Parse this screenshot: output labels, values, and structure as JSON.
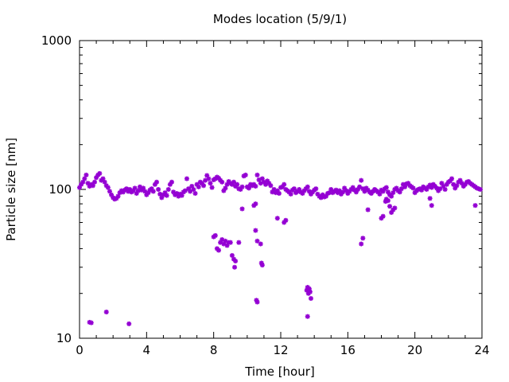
{
  "chart_data": {
    "type": "scatter",
    "title": "Modes location (5/9/1)",
    "xlabel": "Time [hour]",
    "ylabel": "Particle size [nm]",
    "xlim": [
      0,
      24
    ],
    "ylim": [
      10,
      1000
    ],
    "yscale": "log",
    "xticks": [
      0,
      4,
      8,
      12,
      16,
      20,
      24
    ],
    "yticks": [
      10,
      100,
      1000
    ],
    "grid": false,
    "marker_color": "#9400D3",
    "series": [
      {
        "points": [
          [
            0.0,
            103
          ],
          [
            0.1,
            108
          ],
          [
            0.2,
            112
          ],
          [
            0.3,
            118
          ],
          [
            0.4,
            125
          ],
          [
            0.5,
            110
          ],
          [
            0.6,
            105
          ],
          [
            0.7,
            108
          ],
          [
            0.8,
            106
          ],
          [
            0.9,
            112
          ],
          [
            1.0,
            120
          ],
          [
            1.1,
            125
          ],
          [
            1.2,
            128
          ],
          [
            1.3,
            115
          ],
          [
            1.4,
            118
          ],
          [
            1.5,
            112
          ],
          [
            1.6,
            106
          ],
          [
            1.7,
            103
          ],
          [
            1.8,
            97
          ],
          [
            1.9,
            92
          ],
          [
            2.0,
            88
          ],
          [
            2.1,
            86
          ],
          [
            2.2,
            87
          ],
          [
            2.3,
            90
          ],
          [
            2.4,
            95
          ],
          [
            2.5,
            98
          ],
          [
            2.6,
            96
          ],
          [
            2.7,
            99
          ],
          [
            2.8,
            101
          ],
          [
            2.9,
            97
          ],
          [
            3.0,
            100
          ],
          [
            3.1,
            96
          ],
          [
            3.2,
            98
          ],
          [
            3.3,
            102
          ],
          [
            3.4,
            94
          ],
          [
            3.5,
            98
          ],
          [
            3.6,
            104
          ],
          [
            3.7,
            99
          ],
          [
            3.8,
            102
          ],
          [
            3.9,
            97
          ],
          [
            4.0,
            92
          ],
          [
            4.1,
            95
          ],
          [
            4.2,
            99
          ],
          [
            4.3,
            101
          ],
          [
            4.4,
            97
          ],
          [
            4.5,
            108
          ],
          [
            4.6,
            112
          ],
          [
            4.7,
            100
          ],
          [
            4.8,
            93
          ],
          [
            4.9,
            88
          ],
          [
            5.0,
            92
          ],
          [
            5.1,
            95
          ],
          [
            5.2,
            91
          ],
          [
            5.3,
            100
          ],
          [
            5.4,
            108
          ],
          [
            5.5,
            112
          ],
          [
            5.6,
            96
          ],
          [
            5.7,
            92
          ],
          [
            5.8,
            94
          ],
          [
            5.9,
            90
          ],
          [
            6.0,
            93
          ],
          [
            6.1,
            91
          ],
          [
            6.2,
            96
          ],
          [
            6.3,
            98
          ],
          [
            6.4,
            118
          ],
          [
            6.5,
            101
          ],
          [
            6.6,
            97
          ],
          [
            6.7,
            105
          ],
          [
            6.8,
            100
          ],
          [
            6.9,
            94
          ],
          [
            7.0,
            108
          ],
          [
            7.1,
            104
          ],
          [
            7.2,
            112
          ],
          [
            7.3,
            110
          ],
          [
            7.4,
            106
          ],
          [
            7.5,
            115
          ],
          [
            7.6,
            124
          ],
          [
            7.7,
            118
          ],
          [
            7.8,
            110
          ],
          [
            7.9,
            103
          ],
          [
            8.0,
            116
          ],
          [
            8.1,
            118
          ],
          [
            8.2,
            121
          ],
          [
            8.3,
            119
          ],
          [
            8.4,
            115
          ],
          [
            8.5,
            112
          ],
          [
            8.6,
            98
          ],
          [
            8.7,
            102
          ],
          [
            8.8,
            108
          ],
          [
            8.9,
            113
          ],
          [
            9.0,
            110
          ],
          [
            9.1,
            108
          ],
          [
            9.2,
            112
          ],
          [
            9.3,
            105
          ],
          [
            9.4,
            108
          ],
          [
            9.5,
            101
          ],
          [
            9.6,
            100
          ],
          [
            9.7,
            104
          ],
          [
            9.8,
            123
          ],
          [
            9.9,
            125
          ],
          [
            10.0,
            104
          ],
          [
            10.1,
            102
          ],
          [
            10.2,
            108
          ],
          [
            10.3,
            106
          ],
          [
            10.4,
            108
          ],
          [
            10.5,
            105
          ],
          [
            10.6,
            125
          ],
          [
            10.7,
            116
          ],
          [
            10.8,
            110
          ],
          [
            10.9,
            118
          ],
          [
            11.0,
            112
          ],
          [
            11.1,
            108
          ],
          [
            11.2,
            114
          ],
          [
            11.3,
            110
          ],
          [
            11.4,
            106
          ],
          [
            11.5,
            96
          ],
          [
            11.6,
            100
          ],
          [
            11.7,
            95
          ],
          [
            11.8,
            98
          ],
          [
            11.9,
            94
          ],
          [
            12.0,
            103
          ],
          [
            12.1,
            104
          ],
          [
            12.2,
            108
          ],
          [
            12.3,
            100
          ],
          [
            12.4,
            98
          ],
          [
            12.5,
            96
          ],
          [
            12.6,
            93
          ],
          [
            12.7,
            99
          ],
          [
            12.8,
            101
          ],
          [
            12.9,
            95
          ],
          [
            13.0,
            97
          ],
          [
            13.1,
            100
          ],
          [
            13.2,
            96
          ],
          [
            13.3,
            94
          ],
          [
            13.4,
            98
          ],
          [
            13.5,
            101
          ],
          [
            13.6,
            104
          ],
          [
            13.7,
            97
          ],
          [
            13.8,
            93
          ],
          [
            13.9,
            96
          ],
          [
            14.0,
            99
          ],
          [
            14.1,
            101
          ],
          [
            14.2,
            93
          ],
          [
            14.3,
            90
          ],
          [
            14.4,
            88
          ],
          [
            14.5,
            92
          ],
          [
            14.6,
            89
          ],
          [
            14.7,
            90
          ],
          [
            14.8,
            94
          ],
          [
            14.9,
            95
          ],
          [
            15.0,
            100
          ],
          [
            15.1,
            95
          ],
          [
            15.2,
            97
          ],
          [
            15.3,
            99
          ],
          [
            15.4,
            95
          ],
          [
            15.5,
            98
          ],
          [
            15.6,
            93
          ],
          [
            15.7,
            96
          ],
          [
            15.8,
            102
          ],
          [
            15.9,
            98
          ],
          [
            16.0,
            94
          ],
          [
            16.1,
            97
          ],
          [
            16.2,
            100
          ],
          [
            16.3,
            103
          ],
          [
            16.4,
            99
          ],
          [
            16.5,
            96
          ],
          [
            16.6,
            100
          ],
          [
            16.7,
            104
          ],
          [
            16.8,
            115
          ],
          [
            16.9,
            101
          ],
          [
            17.0,
            97
          ],
          [
            17.1,
            102
          ],
          [
            17.2,
            99
          ],
          [
            17.3,
            96
          ],
          [
            17.4,
            94
          ],
          [
            17.5,
            97
          ],
          [
            17.6,
            100
          ],
          [
            17.7,
            98
          ],
          [
            17.8,
            96
          ],
          [
            17.9,
            93
          ],
          [
            18.0,
            99
          ],
          [
            18.1,
            97
          ],
          [
            18.2,
            101
          ],
          [
            18.3,
            103
          ],
          [
            18.4,
            96
          ],
          [
            18.5,
            92
          ],
          [
            18.6,
            90
          ],
          [
            18.7,
            95
          ],
          [
            18.8,
            100
          ],
          [
            18.9,
            102
          ],
          [
            19.0,
            98
          ],
          [
            19.1,
            96
          ],
          [
            19.2,
            101
          ],
          [
            19.3,
            108
          ],
          [
            19.4,
            104
          ],
          [
            19.5,
            109
          ],
          [
            19.6,
            110
          ],
          [
            19.7,
            106
          ],
          [
            19.8,
            104
          ],
          [
            19.9,
            102
          ],
          [
            20.0,
            95
          ],
          [
            20.1,
            98
          ],
          [
            20.2,
            100
          ],
          [
            20.3,
            101
          ],
          [
            20.4,
            99
          ],
          [
            20.5,
            104
          ],
          [
            20.6,
            102
          ],
          [
            20.7,
            100
          ],
          [
            20.8,
            104
          ],
          [
            20.9,
            107
          ],
          [
            21.0,
            103
          ],
          [
            21.1,
            108
          ],
          [
            21.2,
            105
          ],
          [
            21.3,
            102
          ],
          [
            21.4,
            98
          ],
          [
            21.5,
            101
          ],
          [
            21.6,
            110
          ],
          [
            21.7,
            105
          ],
          [
            21.8,
            100
          ],
          [
            21.9,
            108
          ],
          [
            22.0,
            112
          ],
          [
            22.1,
            114
          ],
          [
            22.2,
            118
          ],
          [
            22.3,
            108
          ],
          [
            22.4,
            102
          ],
          [
            22.5,
            106
          ],
          [
            22.6,
            112
          ],
          [
            22.7,
            115
          ],
          [
            22.8,
            110
          ],
          [
            22.9,
            105
          ],
          [
            23.0,
            108
          ],
          [
            23.1,
            112
          ],
          [
            23.2,
            113
          ],
          [
            23.3,
            110
          ],
          [
            23.4,
            108
          ],
          [
            23.5,
            106
          ],
          [
            23.6,
            104
          ],
          [
            23.7,
            102
          ],
          [
            23.8,
            101
          ],
          [
            23.9,
            100
          ],
          [
            0.6,
            12.8
          ],
          [
            0.7,
            12.7
          ],
          [
            1.6,
            15.0
          ],
          [
            2.95,
            12.5
          ],
          [
            8.0,
            48
          ],
          [
            8.1,
            49
          ],
          [
            8.2,
            40
          ],
          [
            8.3,
            39
          ],
          [
            8.4,
            44
          ],
          [
            8.5,
            46
          ],
          [
            8.6,
            43
          ],
          [
            8.7,
            45
          ],
          [
            8.8,
            42
          ],
          [
            8.9,
            44
          ],
          [
            9.0,
            44
          ],
          [
            9.1,
            36
          ],
          [
            9.2,
            34
          ],
          [
            9.25,
            30
          ],
          [
            9.3,
            33
          ],
          [
            9.5,
            44
          ],
          [
            9.7,
            74
          ],
          [
            10.4,
            78
          ],
          [
            10.5,
            80
          ],
          [
            10.5,
            53
          ],
          [
            10.6,
            45
          ],
          [
            10.55,
            18
          ],
          [
            10.6,
            17.5
          ],
          [
            10.8,
            43
          ],
          [
            10.85,
            32
          ],
          [
            10.9,
            31
          ],
          [
            11.8,
            64
          ],
          [
            12.2,
            60
          ],
          [
            12.3,
            62
          ],
          [
            13.55,
            21
          ],
          [
            13.6,
            22
          ],
          [
            13.65,
            20
          ],
          [
            13.7,
            21.5
          ],
          [
            13.75,
            20.5
          ],
          [
            13.8,
            18.5
          ],
          [
            13.6,
            14
          ],
          [
            16.8,
            43
          ],
          [
            16.9,
            47
          ],
          [
            17.2,
            73
          ],
          [
            18.0,
            64
          ],
          [
            18.1,
            66
          ],
          [
            18.25,
            83
          ],
          [
            18.3,
            86
          ],
          [
            18.4,
            84
          ],
          [
            18.5,
            77
          ],
          [
            18.6,
            70
          ],
          [
            18.7,
            73
          ],
          [
            18.8,
            75
          ],
          [
            20.9,
            87
          ],
          [
            21.0,
            78
          ],
          [
            23.6,
            78
          ]
        ]
      }
    ]
  }
}
